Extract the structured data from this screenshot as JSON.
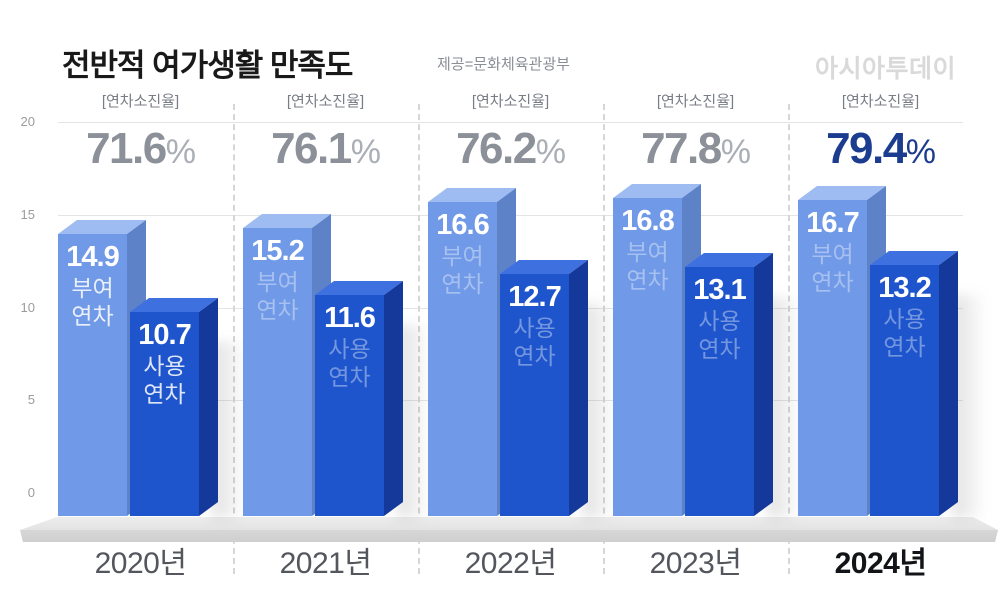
{
  "header": {
    "title": "전반적 여가생활 만족도",
    "source_credit": "제공=문화체육관광부",
    "logo": "아시아투데이"
  },
  "chart_data": {
    "type": "bar",
    "title": "전반적 여가생활 만족도",
    "categories": [
      "2020년",
      "2021년",
      "2022년",
      "2023년",
      "2024년"
    ],
    "group_header_label": "[연차소진율]",
    "burnout_rate_values": [
      71.6,
      76.1,
      76.2,
      77.8,
      79.4
    ],
    "percent_sign": "%",
    "series": [
      {
        "name": "부여 연차",
        "values": [
          14.9,
          15.2,
          16.6,
          16.8,
          16.7
        ]
      },
      {
        "name": "사용 연차",
        "values": [
          10.7,
          11.6,
          12.7,
          13.1,
          13.2
        ]
      }
    ],
    "y_axis_ticks": [
      20,
      15,
      10,
      5,
      0
    ],
    "ylim": [
      0,
      20
    ],
    "grid": true,
    "legend_position": "on-first-bars",
    "highlight_index": 4,
    "colors": {
      "bar1_front": "#7099E7",
      "bar1_top": "#9FBCF2",
      "bar1_side": "#5D82C8",
      "bar2_front": "#1E55CC",
      "bar2_top": "#3E71DF",
      "bar2_side": "#15399B",
      "pct_gray": "#8C9098",
      "pct_sign_gray": "#AAAEB5",
      "pct_navy": "#1C3C8F",
      "value_text": "#FFFFFF"
    }
  }
}
